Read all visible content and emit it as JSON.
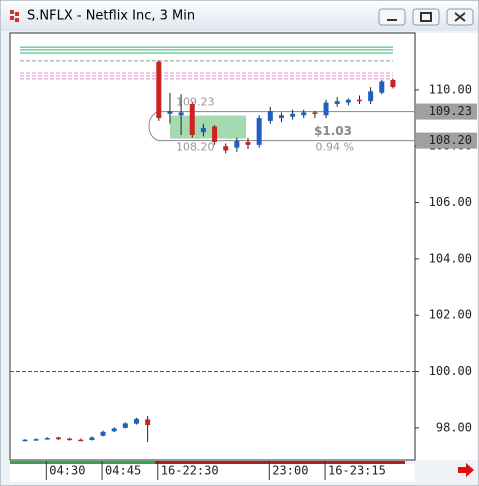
{
  "window": {
    "title": "S.NFLX - Netflix Inc, 3 Min"
  },
  "chart_data": {
    "type": "candlestick",
    "categories": [
      null,
      null,
      "04:30",
      null,
      null,
      null,
      null,
      "04:45",
      null,
      null,
      null,
      null,
      "16-22:30",
      null,
      null,
      null,
      null,
      null,
      null,
      null,
      null,
      null,
      "23:00",
      null,
      null,
      null,
      null,
      "16-23:15",
      null,
      null,
      null,
      null,
      null,
      null
    ],
    "open": [
      97.55,
      97.58,
      97.6,
      97.66,
      97.62,
      97.58,
      97.57,
      97.72,
      97.88,
      98.0,
      98.15,
      98.3,
      111.0,
      109.15,
      109.1,
      109.5,
      108.5,
      108.7,
      108.0,
      107.95,
      108.15,
      108.05,
      108.9,
      109.0,
      109.05,
      109.1,
      109.2,
      109.1,
      109.5,
      109.55,
      109.65,
      109.6,
      109.9,
      110.35
    ],
    "high": [
      97.6,
      97.63,
      97.67,
      97.68,
      97.65,
      97.62,
      97.7,
      97.9,
      98.02,
      98.2,
      98.36,
      98.42,
      111.05,
      109.9,
      109.85,
      109.55,
      108.8,
      108.75,
      108.1,
      108.3,
      108.3,
      109.1,
      109.4,
      109.2,
      109.3,
      109.3,
      109.25,
      109.65,
      109.75,
      109.7,
      109.8,
      110.1,
      110.35,
      110.4
    ],
    "low": [
      97.52,
      97.55,
      97.58,
      97.57,
      97.55,
      97.54,
      97.55,
      97.7,
      97.85,
      97.98,
      98.12,
      97.5,
      108.9,
      108.8,
      108.4,
      108.3,
      108.35,
      108.05,
      107.75,
      107.8,
      107.9,
      107.95,
      108.8,
      108.85,
      108.95,
      109.0,
      109.0,
      109.0,
      109.4,
      109.45,
      109.5,
      109.5,
      109.85,
      110.05
    ],
    "close": [
      97.58,
      97.6,
      97.64,
      97.6,
      97.58,
      97.57,
      97.66,
      97.86,
      97.98,
      98.16,
      98.32,
      98.1,
      109.0,
      109.25,
      109.2,
      108.4,
      108.65,
      108.15,
      107.85,
      108.2,
      108.05,
      109.0,
      109.25,
      109.1,
      109.15,
      109.2,
      109.15,
      109.55,
      109.6,
      109.65,
      109.6,
      109.95,
      110.3,
      110.1
    ],
    "up_color": "#1f5fbf",
    "down_color": "#cc2222",
    "ylim": [
      96.86,
      112.02
    ],
    "yticks": [
      {
        "value": 98,
        "label": "98.00"
      },
      {
        "value": 100,
        "label": "100.00"
      },
      {
        "value": 102,
        "label": "102.00"
      },
      {
        "value": 104,
        "label": "104.00"
      },
      {
        "value": 106,
        "label": "106.00"
      },
      {
        "value": 108,
        "label": "108.00"
      },
      {
        "value": 110,
        "label": "110.00"
      }
    ],
    "levels": [
      {
        "value": 111.52,
        "color": "#2db36b",
        "style": "solid"
      },
      {
        "value": 111.42,
        "color": "#2db36b",
        "style": "solid"
      },
      {
        "value": 111.31,
        "color": "#2db36b",
        "style": "solid"
      },
      {
        "value": 111.03,
        "color": "#999999",
        "style": "dashed"
      },
      {
        "value": 110.6,
        "color": "#e58fd0",
        "style": "dashed"
      },
      {
        "value": 110.5,
        "color": "#e58fd0",
        "style": "dashed"
      },
      {
        "value": 110.39,
        "color": "#e58fd0",
        "style": "dashed"
      },
      {
        "value": 100.0,
        "color": "#cc2222",
        "style": "dashed"
      }
    ],
    "price_labels": [
      {
        "value": 109.23,
        "label": "109.23"
      },
      {
        "value": 108.2,
        "label": "108.20"
      }
    ],
    "measurement": {
      "high": {
        "value": 109.23,
        "label": "109.23"
      },
      "low": {
        "value": 108.2,
        "label": "108.20"
      },
      "change": "$1.03",
      "percent": "0.94 %"
    }
  }
}
